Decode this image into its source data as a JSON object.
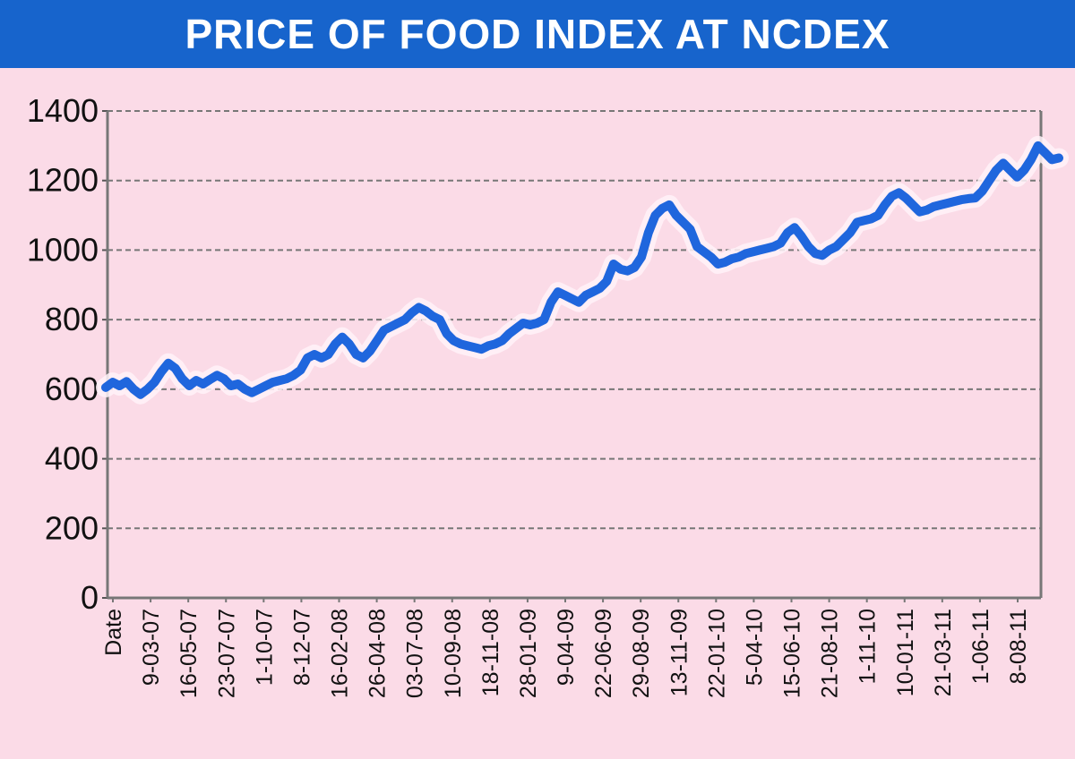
{
  "header": {
    "title": "PRICE OF FOOD INDEX AT NCDEX"
  },
  "colors": {
    "banner": "#1764cc",
    "background": "#fbdbe7",
    "line": "#1f66dd",
    "glow": "#fff2f8",
    "grid": "#777777"
  },
  "chart_data": {
    "type": "line",
    "title": "PRICE OF FOOD INDEX AT NCDEX",
    "xlabel": "",
    "ylabel": "",
    "ylim": [
      0,
      1400
    ],
    "yticks": [
      0,
      200,
      400,
      600,
      800,
      1000,
      1200,
      1400
    ],
    "grid": "horizontal dashed",
    "x_tick_labels": [
      "Date",
      "9-03-07",
      "16-05-07",
      "23-07-07",
      "1-10-07",
      "8-12-07",
      "16-02-08",
      "26-04-08",
      "03-07-08",
      "10-09-08",
      "18-11-08",
      "28-01-09",
      "9-04-09",
      "22-06-09",
      "29-08-09",
      "13-11-09",
      "22-01-10",
      "5-04-10",
      "15-06-10",
      "21-08-10",
      "1-11-10",
      "10-01-11",
      "21-03-11",
      "1-06-11",
      "8-08-11"
    ],
    "series": [
      {
        "values": [
          605,
          620,
          610,
          622,
          600,
          585,
          600,
          620,
          650,
          675,
          660,
          630,
          610,
          625,
          615,
          628,
          640,
          630,
          610,
          615,
          600,
          590,
          600,
          610,
          620,
          625,
          630,
          640,
          655,
          690,
          700,
          690,
          700,
          730,
          750,
          730,
          700,
          690,
          710,
          740,
          770,
          780,
          790,
          800,
          820,
          835,
          825,
          810,
          800,
          760,
          740,
          730,
          725,
          720,
          715,
          725,
          730,
          740,
          760,
          775,
          790,
          785,
          790,
          800,
          850,
          880,
          870,
          860,
          850,
          870,
          880,
          890,
          910,
          960,
          945,
          940,
          950,
          980,
          1050,
          1100,
          1120,
          1130,
          1100,
          1080,
          1060,
          1010,
          995,
          980,
          960,
          965,
          975,
          980,
          990,
          995,
          1000,
          1005,
          1010,
          1020,
          1050,
          1065,
          1040,
          1010,
          990,
          985,
          1000,
          1010,
          1030,
          1050,
          1080,
          1085,
          1090,
          1100,
          1130,
          1155,
          1165,
          1150,
          1130,
          1110,
          1115,
          1125,
          1130,
          1135,
          1140,
          1145,
          1148,
          1150,
          1170,
          1200,
          1230,
          1250,
          1230,
          1210,
          1230,
          1260,
          1300,
          1280,
          1260,
          1265
        ]
      }
    ]
  }
}
